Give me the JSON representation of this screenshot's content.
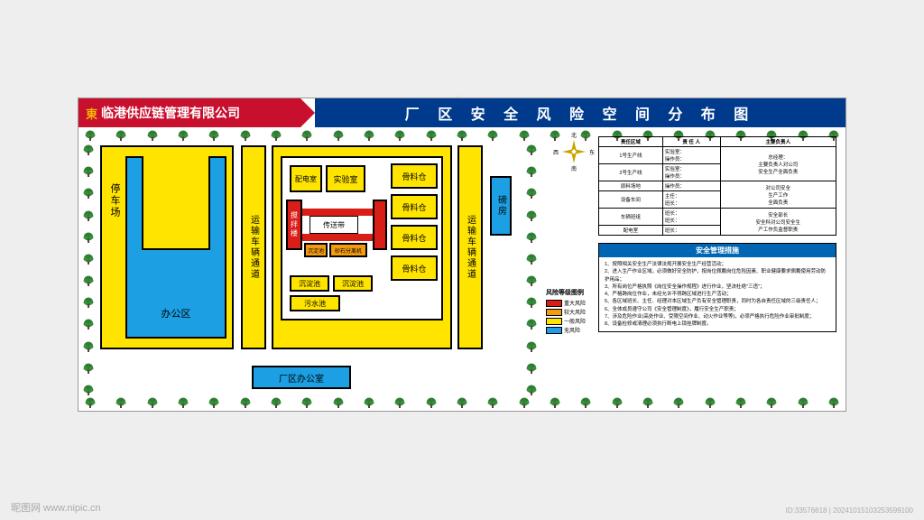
{
  "header": {
    "logo_char": "東",
    "company": "临港供应链管理有限公司",
    "title": "厂 区 安 全 风 险 空 间 分 布 图"
  },
  "colors": {
    "header_left_bg": "#c8102e",
    "header_right_bg": "#003a8c",
    "yellow": "#ffe400",
    "blue": "#1ca0e3",
    "orange": "#f39c12",
    "red": "#d91e18",
    "measures_header": "#0066b3"
  },
  "compass": {
    "n": "北",
    "s": "南",
    "e": "东",
    "w": "西"
  },
  "blocks": {
    "parking": "停车场",
    "office": "办公区",
    "corridor1": "运输车辆通道",
    "corridor2": "运输车辆通道",
    "pdroom": "配电室",
    "lab": "实验室",
    "mixer": "搅拌楼",
    "conveyor": "传送带",
    "stone": "砂石分离机",
    "pond1": "沉淀池",
    "pond2": "沉淀池",
    "pond3": "沉淀池",
    "sewage": "污水池",
    "silo1": "骨料仓",
    "silo2": "骨料仓",
    "silo3": "骨料仓",
    "silo4": "骨料仓",
    "weigh": "磅房",
    "area_office": "厂区办公室"
  },
  "legend": {
    "title": "风险等级图例",
    "items": [
      {
        "label": "重大风险",
        "color": "#d91e18"
      },
      {
        "label": "较大风险",
        "color": "#f39c12"
      },
      {
        "label": "一般风险",
        "color": "#ffe400"
      },
      {
        "label": "无风险",
        "color": "#1ca0e3"
      }
    ]
  },
  "resp_table": {
    "headers": [
      "责任区域",
      "责 任 人",
      "主要负责人"
    ],
    "rows": [
      {
        "area": "1号生产线",
        "person": "实验室：\n操作员：",
        "owner_rowspan": 2,
        "owner": "总经理：\n主要负责人对公司\n安全生产全面负责"
      },
      {
        "area": "2号生产线",
        "person": "实验室：\n操作员："
      },
      {
        "area": "原料场地",
        "person": "操作员：",
        "owner_rowspan": 2,
        "owner": "对公司安全\n生产工作\n全面负责"
      },
      {
        "area": "设备车间",
        "person": "主任：\n班长："
      },
      {
        "area": "车辆班组",
        "person": "班长：\n班长：",
        "owner_rowspan": 2,
        "owner": "安全部长\n安全科对公司安全生\n产工作负监督职责"
      },
      {
        "area": "配电室",
        "person": "班长："
      }
    ]
  },
  "measures": {
    "title": "安全管理措施",
    "items": [
      "1、按照相关安全生产法律法规开展安全生产经营活动；",
      "2、进入生产作业区域，必须做好安全防护，按岗位佩戴岗位危险因素、职业健康要求佩戴使用劳动防护用品；",
      "3、所有岗位严格执照《岗位安全操作规程》进行作业，坚决杜绝\"三违\"；",
      "4、严格跨岗位作业，未经允许不得跨区域进行生产活动；",
      "5、各区域班长、主任、经理对本区域生产负有安全管理职责，同时为各自责任区域的三级责任人；",
      "6、全体成员遵守公司《安全管理制度》，履行安全生产职责；",
      "7、涉及危险作业(高处作业、受限空间作业、动火作业等等)，必须严格执行危险作业审批制度；",
      "8、设备检修或清理必须执行断电上锁挂牌制度。"
    ]
  },
  "watermark": {
    "site": "昵图网 www.nipic.cn",
    "id": "ID:33576618 | 20241015103253599100"
  },
  "trees": {
    "top_count": 25,
    "bottom_count": 25,
    "side_count": 12
  }
}
